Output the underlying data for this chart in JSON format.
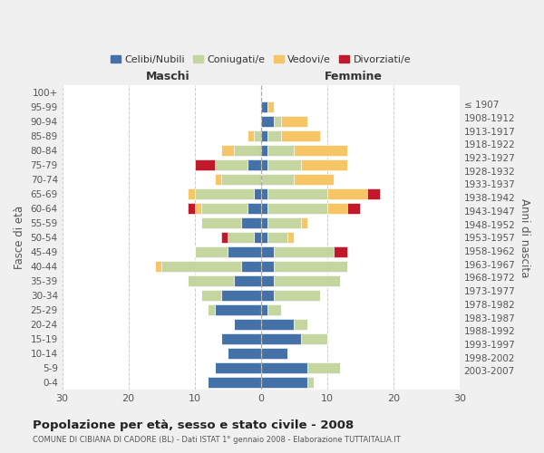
{
  "age_groups": [
    "0-4",
    "5-9",
    "10-14",
    "15-19",
    "20-24",
    "25-29",
    "30-34",
    "35-39",
    "40-44",
    "45-49",
    "50-54",
    "55-59",
    "60-64",
    "65-69",
    "70-74",
    "75-79",
    "80-84",
    "85-89",
    "90-94",
    "95-99",
    "100+"
  ],
  "birth_years": [
    "2003-2007",
    "1998-2002",
    "1993-1997",
    "1988-1992",
    "1983-1987",
    "1978-1982",
    "1973-1977",
    "1968-1972",
    "1963-1967",
    "1958-1962",
    "1953-1957",
    "1948-1952",
    "1943-1947",
    "1938-1942",
    "1933-1937",
    "1928-1932",
    "1923-1927",
    "1918-1922",
    "1913-1917",
    "1908-1912",
    "≤ 1907"
  ],
  "maschi": {
    "celibi": [
      8,
      7,
      5,
      6,
      4,
      7,
      6,
      4,
      3,
      5,
      1,
      3,
      2,
      1,
      0,
      2,
      0,
      0,
      0,
      0,
      0
    ],
    "coniugati": [
      0,
      0,
      0,
      0,
      0,
      1,
      3,
      7,
      12,
      5,
      4,
      6,
      7,
      9,
      6,
      5,
      4,
      1,
      0,
      0,
      0
    ],
    "vedovi": [
      0,
      0,
      0,
      0,
      0,
      0,
      0,
      0,
      1,
      0,
      0,
      0,
      1,
      1,
      1,
      0,
      2,
      1,
      0,
      0,
      0
    ],
    "divorziati": [
      0,
      0,
      0,
      0,
      0,
      0,
      0,
      0,
      0,
      0,
      1,
      0,
      1,
      0,
      0,
      3,
      0,
      0,
      0,
      0,
      0
    ]
  },
  "femmine": {
    "nubili": [
      7,
      7,
      4,
      6,
      5,
      1,
      2,
      2,
      2,
      2,
      1,
      1,
      1,
      1,
      0,
      1,
      1,
      1,
      2,
      1,
      0
    ],
    "coniugate": [
      1,
      5,
      0,
      4,
      2,
      2,
      7,
      10,
      11,
      9,
      3,
      5,
      9,
      9,
      5,
      5,
      4,
      2,
      1,
      0,
      0
    ],
    "vedove": [
      0,
      0,
      0,
      0,
      0,
      0,
      0,
      0,
      0,
      0,
      1,
      1,
      3,
      6,
      6,
      7,
      8,
      6,
      4,
      1,
      0
    ],
    "divorziate": [
      0,
      0,
      0,
      0,
      0,
      0,
      0,
      0,
      0,
      2,
      0,
      0,
      2,
      2,
      0,
      0,
      0,
      0,
      0,
      0,
      0
    ]
  },
  "colors": {
    "celibi_nubili": "#4472A8",
    "coniugati": "#C5D5A0",
    "vedovi": "#F5C566",
    "divorziati": "#C0192C"
  },
  "xlim": 30,
  "title": "Popolazione per età, sesso e stato civile - 2008",
  "subtitle": "COMUNE DI CIBIANA DI CADORE (BL) - Dati ISTAT 1° gennaio 2008 - Elaborazione TUTTAITALIA.IT",
  "ylabel": "Fasce di età",
  "ylabel2": "Anni di nascita",
  "maschi_label": "Maschi",
  "femmine_label": "Femmine",
  "bg_color": "#f0f0f0",
  "plot_bg": "#ffffff"
}
